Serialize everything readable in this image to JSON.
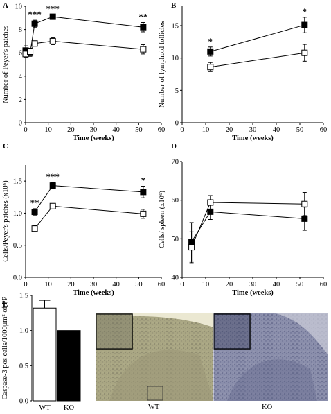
{
  "chart_data": [
    {
      "panel": "A",
      "type": "line",
      "xlabel": "Time (weeks)",
      "ylabel": "Number of Peyer's patches",
      "xlim": [
        0,
        60
      ],
      "ylim": [
        0,
        10
      ],
      "xticks": [
        0,
        10,
        20,
        30,
        40,
        50,
        60
      ],
      "yticks": [
        0,
        2,
        4,
        6,
        8,
        10
      ],
      "series": [
        {
          "marker": "filled-square",
          "x": [
            0,
            2,
            4,
            12,
            52
          ],
          "y": [
            6.2,
            6.0,
            8.5,
            9.1,
            8.2
          ],
          "err": [
            0.4,
            0.3,
            0.3,
            0.2,
            0.4
          ]
        },
        {
          "marker": "open-square",
          "x": [
            0,
            2,
            4,
            12,
            52
          ],
          "y": [
            5.9,
            6.1,
            6.8,
            7.0,
            6.3
          ],
          "err": [
            0.3,
            0.3,
            0.2,
            0.3,
            0.4
          ]
        }
      ],
      "annotations": [
        {
          "x": 4,
          "text": "***"
        },
        {
          "x": 12,
          "text": "***"
        },
        {
          "x": 52,
          "text": "**"
        }
      ]
    },
    {
      "panel": "B",
      "type": "line",
      "xlabel": "Time (weeks)",
      "ylabel": "Number of lymphoid follicles",
      "xlim": [
        0,
        60
      ],
      "ylim": [
        0,
        18
      ],
      "xticks": [
        0,
        10,
        20,
        30,
        40,
        50,
        60
      ],
      "yticks": [
        0,
        5,
        10,
        15
      ],
      "series": [
        {
          "marker": "filled-square",
          "x": [
            12,
            52
          ],
          "y": [
            11.0,
            15.1
          ],
          "err": [
            0.7,
            1.2
          ]
        },
        {
          "marker": "open-square",
          "x": [
            12,
            52
          ],
          "y": [
            8.6,
            10.8
          ],
          "err": [
            0.7,
            1.3
          ]
        }
      ],
      "annotations": [
        {
          "x": 12,
          "text": "*"
        },
        {
          "x": 52,
          "text": "*"
        }
      ]
    },
    {
      "panel": "C",
      "type": "line",
      "xlabel": "Time (weeks)",
      "ylabel": "Cells/Peyer's patches (x10⁶)",
      "xlim": [
        0,
        60
      ],
      "ylim": [
        0,
        1.75
      ],
      "xticks": [
        0,
        10,
        20,
        30,
        40,
        50,
        60
      ],
      "yticks": [
        0.0,
        0.5,
        1.0,
        1.5
      ],
      "ytick_labels": [
        "0.0",
        "0.5",
        "1.0",
        "1.5"
      ],
      "series": [
        {
          "marker": "filled-square",
          "x": [
            4,
            12,
            52
          ],
          "y": [
            1.02,
            1.43,
            1.33
          ],
          "err": [
            0.05,
            0.05,
            0.09
          ]
        },
        {
          "marker": "open-square",
          "x": [
            4,
            12,
            52
          ],
          "y": [
            0.76,
            1.11,
            0.99
          ],
          "err": [
            0.05,
            0.03,
            0.07
          ]
        }
      ],
      "annotations": [
        {
          "x": 4,
          "text": "**"
        },
        {
          "x": 12,
          "text": "***"
        },
        {
          "x": 52,
          "text": "*"
        }
      ]
    },
    {
      "panel": "D",
      "type": "line",
      "xlabel": "Time (weeks)",
      "ylabel": "Cells/ spleen (x10⁶)",
      "xlim": [
        0,
        60
      ],
      "ylim": [
        40,
        70
      ],
      "xticks": [
        0,
        10,
        20,
        30,
        40,
        50,
        60
      ],
      "yticks": [
        40,
        50,
        60,
        70
      ],
      "series": [
        {
          "marker": "filled-square",
          "x": [
            4,
            12,
            52
          ],
          "y": [
            49.2,
            57.0,
            55.2
          ],
          "err": [
            5.0,
            2.0,
            3.0
          ]
        },
        {
          "marker": "open-square",
          "x": [
            4,
            12,
            52
          ],
          "y": [
            47.8,
            59.4,
            59.0
          ],
          "err": [
            4.0,
            1.8,
            3.0
          ]
        }
      ],
      "annotations": []
    },
    {
      "panel": "E",
      "type": "bar",
      "ylabel": "Caspase-3 pos cells/1000μm² of PP",
      "categories": [
        "WT",
        "KO"
      ],
      "values": [
        1.32,
        1.0
      ],
      "err": [
        0.11,
        0.12
      ],
      "fill": [
        "#ffffff",
        "#000000"
      ],
      "ylim": [
        0,
        1.5
      ],
      "yticks": [
        0.0,
        0.5,
        1.0,
        1.5
      ],
      "ytick_labels": [
        "0.0",
        "0.5",
        "1.0",
        "1.5"
      ]
    }
  ],
  "micrographs": {
    "labels": [
      "WT",
      "KO"
    ],
    "colors": {
      "wt_base": "#a6a27e",
      "wt_dark": "#6f6d60",
      "ko_base": "#7d82a2",
      "ko_dark": "#4a4f72",
      "background": "#e8e6d2"
    }
  }
}
